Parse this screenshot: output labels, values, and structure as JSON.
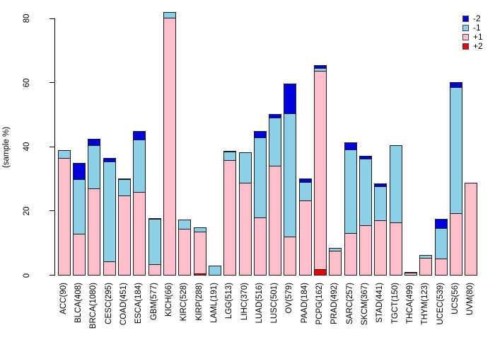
{
  "chart_data": {
    "type": "bar",
    "stacked": true,
    "title": "",
    "xlabel": "",
    "ylabel": "(sample %)",
    "ylim": [
      0,
      82
    ],
    "yticks": [
      0,
      20,
      40,
      60,
      80
    ],
    "grid": false,
    "legend_position": "top-right",
    "bar_border_color": "#1c1c1c",
    "categories": [
      "ACC(90)",
      "BLCA(408)",
      "BRCA(1080)",
      "CESC(295)",
      "COAD(451)",
      "ESCA(184)",
      "GBM(577)",
      "KICH(66)",
      "KIRC(528)",
      "KIRP(288)",
      "LAML(191)",
      "LGG(513)",
      "LIHC(370)",
      "LUAD(516)",
      "LUSC(501)",
      "OV(579)",
      "PAAD(184)",
      "PCPG(162)",
      "PRAD(492)",
      "SARC(257)",
      "SKCM(367)",
      "STAD(441)",
      "TGCT(150)",
      "THCA(499)",
      "THYM(123)",
      "UCEC(539)",
      "UCS(56)",
      "UVM(80)"
    ],
    "series": [
      {
        "name": "+2",
        "color": "#ee0000",
        "values": [
          0,
          0,
          0,
          0,
          0,
          0,
          0,
          0,
          0,
          0.6,
          0,
          0,
          0,
          0,
          0,
          0,
          0,
          2.0,
          0,
          0,
          0,
          0,
          0,
          0,
          0,
          0,
          0,
          0
        ]
      },
      {
        "name": "+1",
        "color": "#ffc0cb",
        "values": [
          36.7,
          13.0,
          27.1,
          4.4,
          25.0,
          26.1,
          3.5,
          80.3,
          14.6,
          13.3,
          0,
          35.9,
          28.9,
          18.0,
          34.3,
          12.2,
          23.3,
          62.0,
          7.7,
          13.2,
          15.6,
          17.2,
          16.6,
          0.9,
          5.5,
          5.2,
          19.4,
          29.0
        ]
      },
      {
        "name": "-1",
        "color": "#8ccfe6",
        "values": [
          2.6,
          17.3,
          13.6,
          31.4,
          5.2,
          16.6,
          14.3,
          2.0,
          3.0,
          1.5,
          3.0,
          2.9,
          9.8,
          25.1,
          15.3,
          38.7,
          5.9,
          1.0,
          1.2,
          26.3,
          21.0,
          10.8,
          24.2,
          0.5,
          1.1,
          9.8,
          39.6,
          0
        ]
      },
      {
        "name": "-2",
        "color": "#0000dd",
        "values": [
          0,
          5.3,
          2.2,
          1.3,
          0.5,
          2.9,
          0.5,
          0,
          0,
          0,
          0,
          0.4,
          0,
          2.1,
          1.3,
          9.5,
          1.3,
          1.0,
          0,
          2.5,
          1.1,
          1.2,
          0,
          0,
          0,
          3.0,
          1.7,
          0
        ]
      }
    ],
    "legend": [
      {
        "label": "-2",
        "color": "#0000dd"
      },
      {
        "label": "-1",
        "color": "#8ccfe6"
      },
      {
        "label": "+1",
        "color": "#ffc0cb"
      },
      {
        "label": "+2",
        "color": "#ee0000"
      }
    ]
  }
}
